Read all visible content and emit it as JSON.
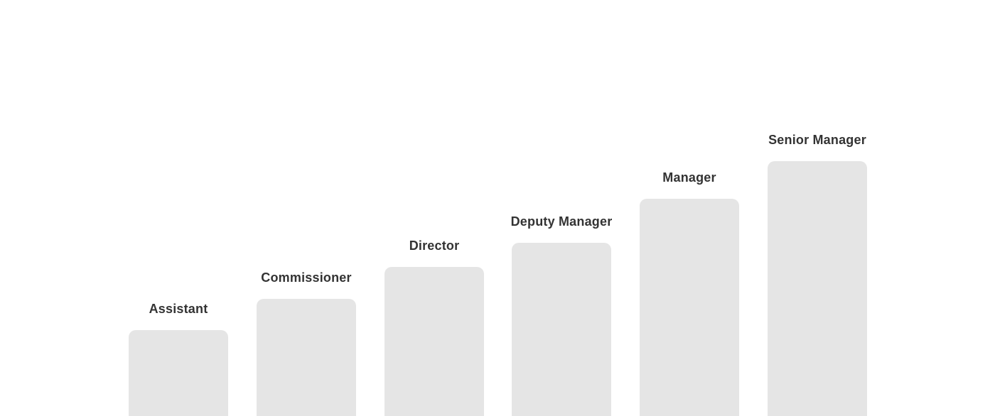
{
  "page": {
    "background": "#ffffff"
  },
  "chart_data": {
    "type": "bar",
    "title": "",
    "xlabel": "",
    "ylabel": "",
    "categories": [
      "Assistant",
      "Commissioner",
      "Director",
      "Deputy Manager",
      "Manager",
      "Senior Manager"
    ],
    "values": [
      121,
      165,
      210,
      244,
      306,
      359
    ],
    "values_unit": "visible-bar-height-px",
    "bar_color": "#e5e5e5",
    "label_color": "#333333",
    "axes_visible": false,
    "gridlines_visible": false,
    "legend_visible": false,
    "bars_cropped_at_bottom": true
  }
}
